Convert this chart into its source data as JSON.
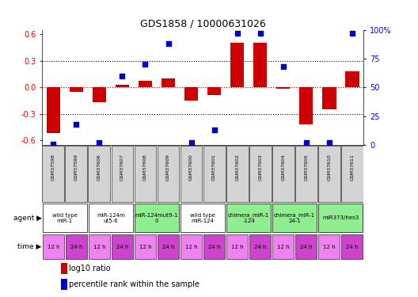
{
  "title": "GDS1858 / 10000631026",
  "samples": [
    "GSM37598",
    "GSM37599",
    "GSM37606",
    "GSM37607",
    "GSM37608",
    "GSM37609",
    "GSM37600",
    "GSM37601",
    "GSM37602",
    "GSM37603",
    "GSM37604",
    "GSM37605",
    "GSM37610",
    "GSM37611"
  ],
  "log10_ratio": [
    -0.52,
    -0.05,
    -0.17,
    0.03,
    0.07,
    0.1,
    -0.15,
    -0.09,
    0.5,
    0.5,
    -0.02,
    -0.42,
    -0.25,
    0.18
  ],
  "percentile_rank": [
    1,
    18,
    2,
    60,
    70,
    88,
    2,
    13,
    97,
    97,
    68,
    2,
    2,
    97
  ],
  "agents": [
    {
      "label": "wild type\nmiR-1",
      "span": [
        0,
        2
      ],
      "color": "#ffffff"
    },
    {
      "label": "miR-124m\nut5-6",
      "span": [
        2,
        4
      ],
      "color": "#ffffff"
    },
    {
      "label": "miR-124mut9-1\n0",
      "span": [
        4,
        6
      ],
      "color": "#90ee90"
    },
    {
      "label": "wild type\nmiR-124",
      "span": [
        6,
        8
      ],
      "color": "#ffffff"
    },
    {
      "label": "chimera_miR-1\n-124",
      "span": [
        8,
        10
      ],
      "color": "#90ee90"
    },
    {
      "label": "chimera_miR-1\n24-1",
      "span": [
        10,
        12
      ],
      "color": "#90ee90"
    },
    {
      "label": "miR373/hes3",
      "span": [
        12,
        14
      ],
      "color": "#90ee90"
    }
  ],
  "ylim": [
    -0.65,
    0.65
  ],
  "yticks_left": [
    -0.6,
    -0.3,
    0.0,
    0.3,
    0.6
  ],
  "yticks_right": [
    0,
    25,
    50,
    75,
    100
  ],
  "ytick_right_labels": [
    "0",
    "25",
    "50",
    "75",
    "100%"
  ],
  "bar_color": "#cc0000",
  "scatter_color": "#0000cc",
  "bg_color": "#ffffff",
  "dotted_line_color": "#000000",
  "zero_line_color": "#cc0000",
  "time_color_12": "#ee82ee",
  "time_color_24": "#cc44cc",
  "agent_bg": "#d3d3d3",
  "gsm_bg": "#d3d3d3"
}
